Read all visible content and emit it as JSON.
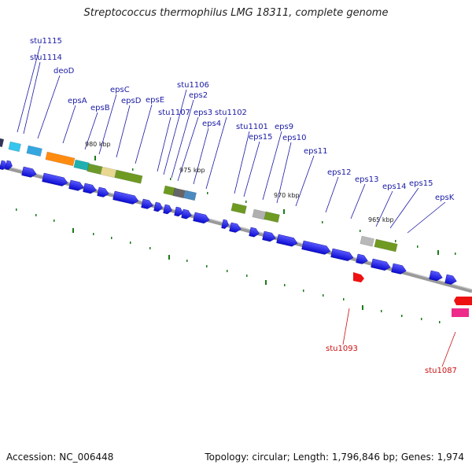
{
  "title": "Streptococcus thermophilus LMG 18311, complete genome",
  "accession": "Accession: NC_006448",
  "stats": "Topology: circular; Length: 1,796,846 bp; Genes: 1,974",
  "colors": {
    "label": "#1a1aa6",
    "label_red": "#cc1111",
    "gene_forward": "#1414e6",
    "backbone": "#8c8c8c",
    "tick": "#1a7a1a"
  },
  "position_labels": [
    "980 kbp",
    "975 kbp",
    "970 kbp",
    "965 kbp"
  ],
  "gene_labels": [
    "stu1115",
    "stu1114",
    "deoD",
    "epsA",
    "epsB",
    "epsC",
    "epsD",
    "epsE",
    "stu1106",
    "eps2",
    "stu1107",
    "eps3",
    "eps4",
    "stu1102",
    "stu1101",
    "eps15",
    "eps9",
    "eps10",
    "eps11",
    "eps12",
    "eps13",
    "eps14",
    "eps15",
    "epsK",
    "stu1093",
    "stu1087"
  ]
}
